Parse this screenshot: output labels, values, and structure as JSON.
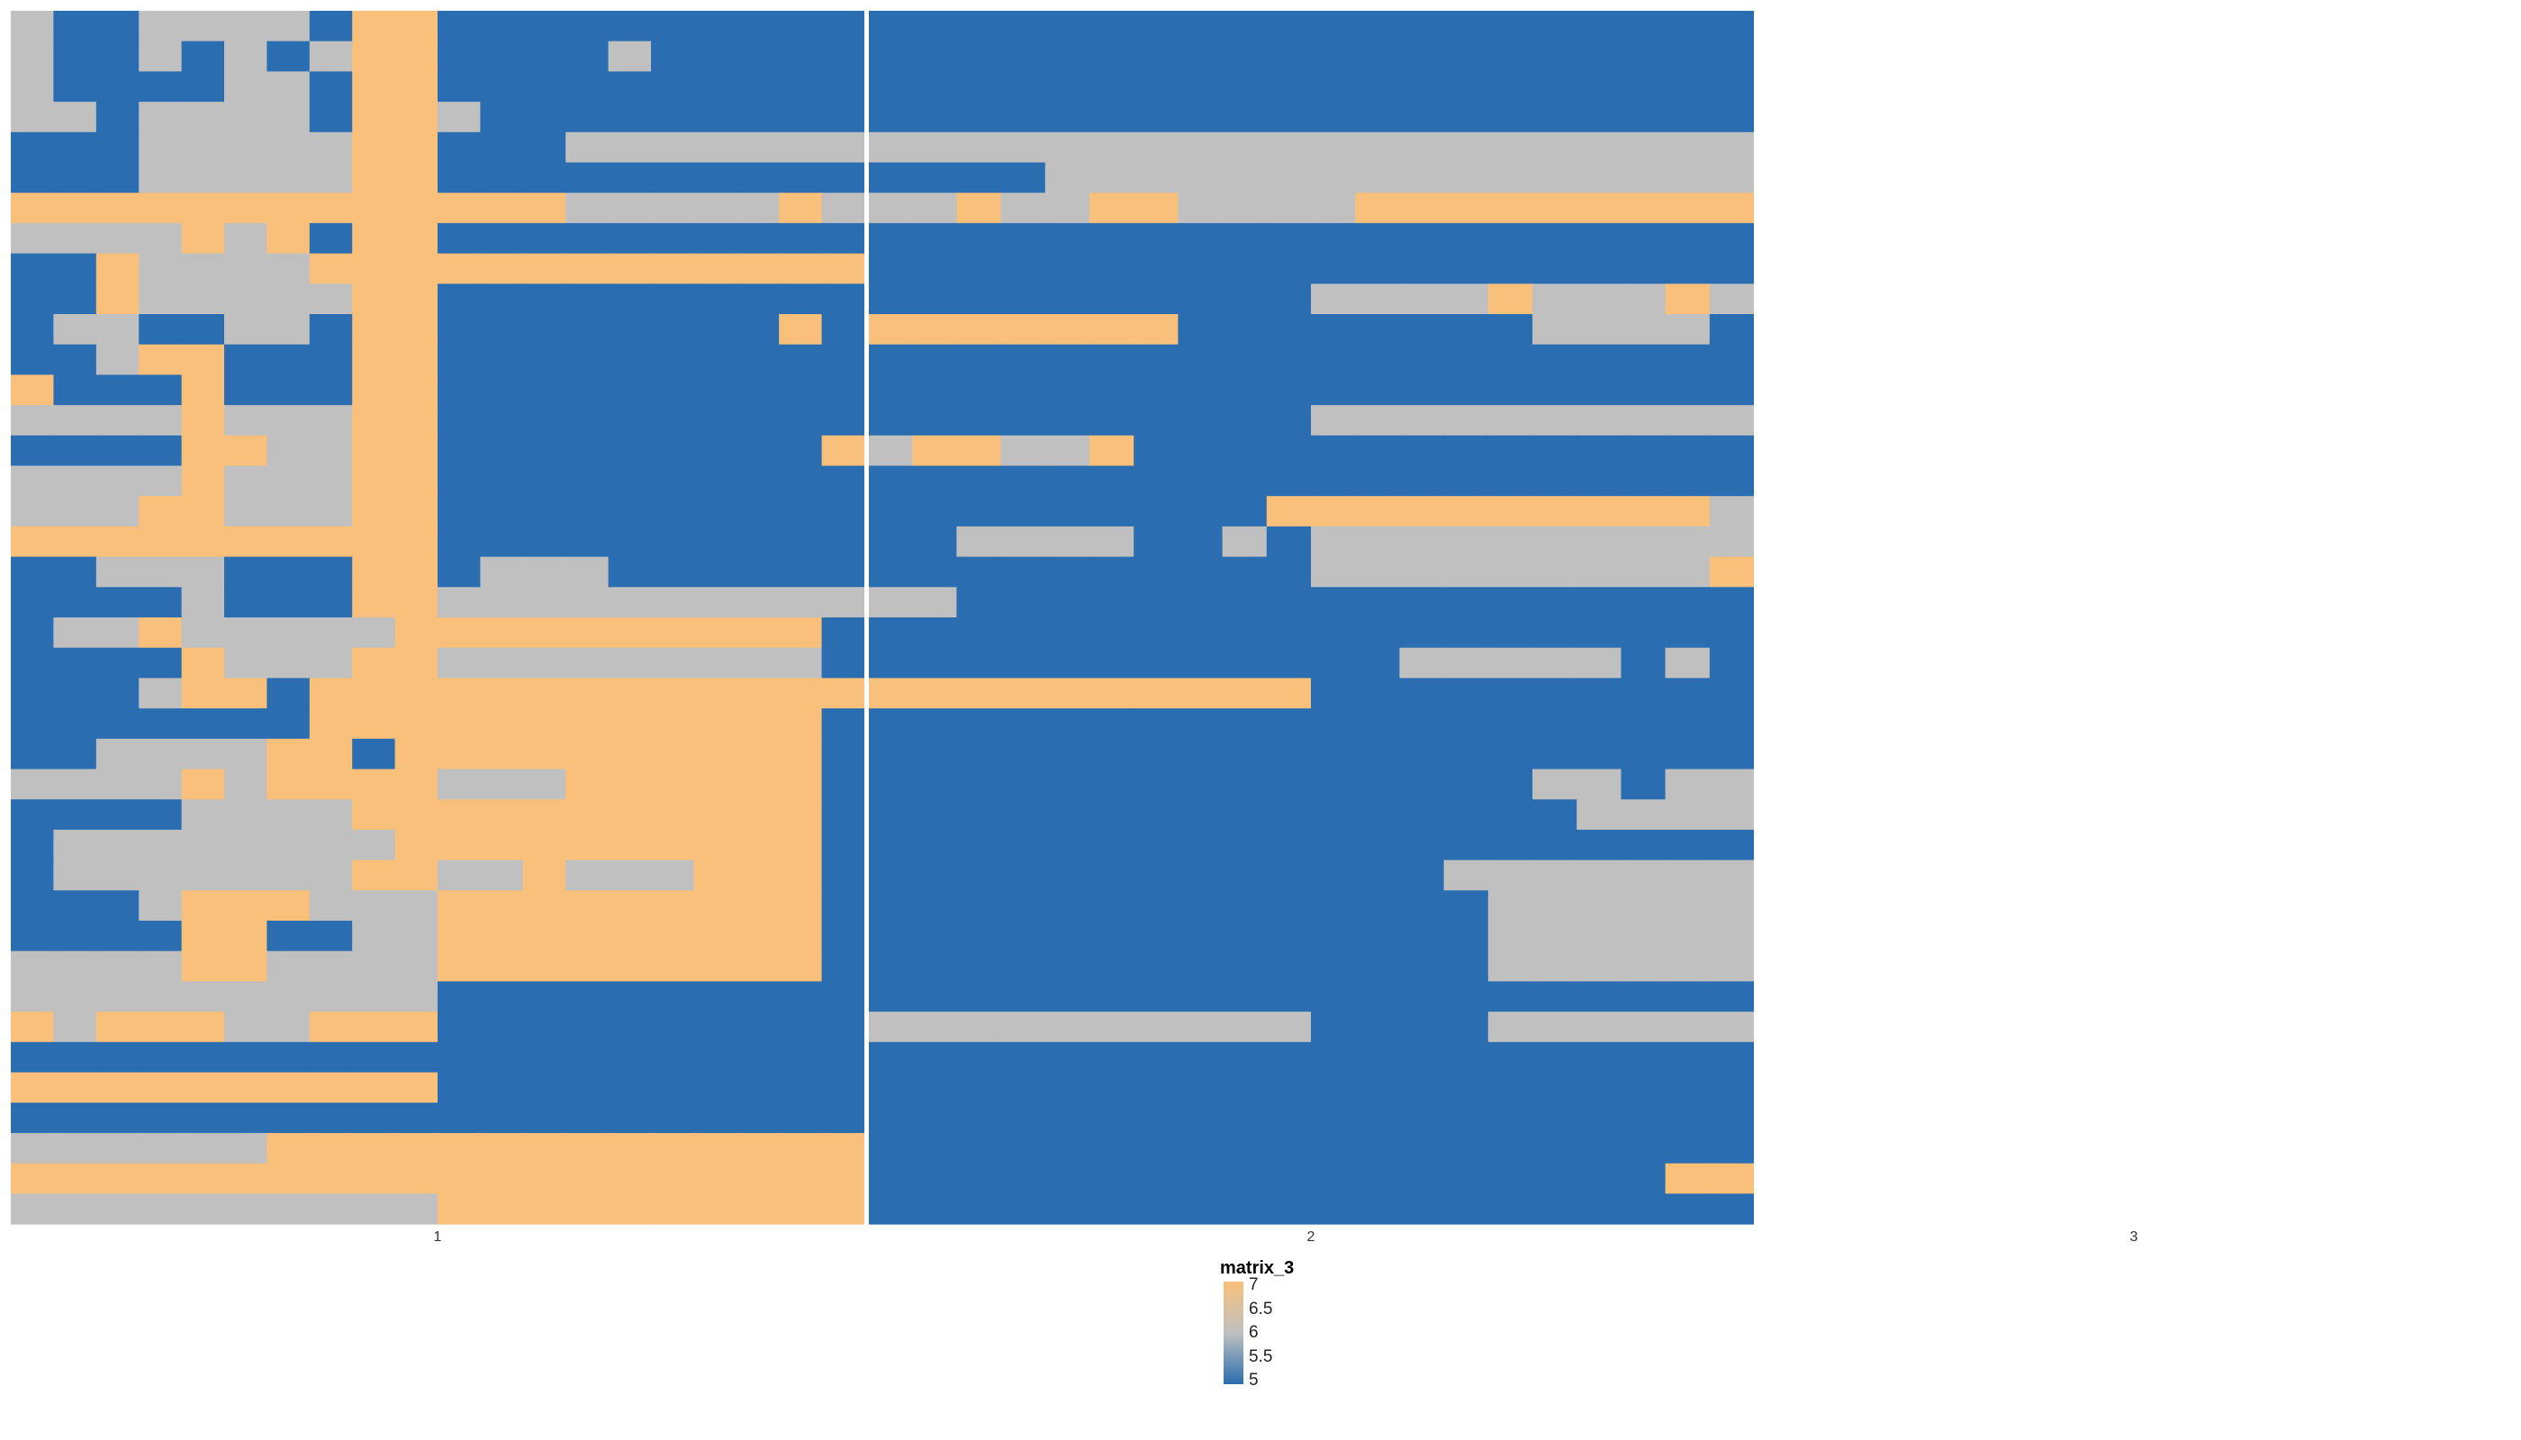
{
  "chart_data": {
    "type": "heatmap",
    "title": "",
    "xlabel": "",
    "ylabel": "",
    "x": [
      1,
      2,
      3
    ],
    "column_split_labels": [
      "1",
      "2",
      "3"
    ],
    "n_rows": 40,
    "colors": {
      "low": "#2a6db0",
      "mid": "#c0c0c0",
      "high": "#f8c07a"
    },
    "legend": {
      "title": "matrix_3",
      "range": [
        5,
        7
      ],
      "breaks": [
        "7",
        "6.5",
        "6",
        "5.5",
        "5"
      ],
      "position": "bottom-center"
    },
    "panel_rows": [
      "GBBGGGGBYYBBBBBBBBBBBBBBBBBBBBBBBBBBBBBB",
      "GBBGBGBGYYBBBBGBBBBBBBBBBBBBBBBBBBBBBBBB",
      "GBBBBGGBYYBBBBBBBBBBBBBBBBBBBBBBBBBBBBBB",
      "GGBGGGGBYYGBBBBBBBBBBBBBBBBBBBBBBBBBBBBB",
      "BBBGGGGGYYBBBGGGGGGGGGGGGGGGGGGGGGGGGGGG",
      "BBBGGGGGYYBBBBBBBBBBBBBBGGGGGGGGGGGGGGGG",
      "YYYYYYYYYYYYYGGGGGYGGGYGGYYGGGGYYYYYYYYY",
      "GGGGYGYBYYBBBBBBBBBBBBBBBBBBBBBBBBBBBBBB",
      "BBYGGGGYYYYYYYYYYYYYBBBBBBBBBBBBBBBBBBBB",
      "BBYGGGGGYYBBBBBBBBBBBBBBBBBBBBGGGGYGGGYG",
      "BGGBBGGBYYBBBBBBBBYBYYYYYYYBBBBBBBBGGGGB",
      "BBGYYBBBYYBBBBBBBBBBBBBBBBBBBBBBBBBBBBBB",
      "YBBBYBBBYYBBBBBBBBBBBBBBBBBBBBBBBBBBBBBB",
      "GGGGYGGGYYBBBBBBBBBBBBBBBBBBBBGGGGGGGGGG",
      "BBBBYYGGYYBBBBBBBBBYGYYGGYBBBBBBBBBBBBBB",
      "GGGGYGGGYYBBBBBBBBBBBBBBBBBBBBBBBBBBBBBB",
      "GGGYYGGGYYBBBBBBBBBBBBBBBBBBBYYYYYYYYYYG",
      "YYYYYYYYYYBBBBBBBBBBBBGGGGBBGBGGGGGGGGGG",
      "BBGGGBBBYYBGGGBBBBBBBBBBBBBBBBGGGGGGGGGY",
      "BBBBGBBBYYGGGGGGGGGGGGBBBBBBBBBBBBBBBBBB",
      "BGGYGGGGGYYYYYYYYYYBBBBBBBBBBBBBBBBBBBBB",
      "BBBBYGGGYYGGGGGGGGGBBBBBBBBBBBBBGGGGGBGB",
      "BBBGYYBYYYYYYYYYYYYYYYYYYYYYYYBBBBBBBBBB",
      "BBBBBBBYYYYYYYYYYYYBBBBBBBBBBBBBBBBBBBBB",
      "BBGGGGYYBYYYYYYYYYYBBBBBBBBBBBBBBBBBBBBB",
      "GGGGYGYYYYGGGYYYYYYBBBBBBBBBBBBBBBBGGBGG",
      "BBBBGGGGYYYYYYYYYYYBBBBBBBBBBBBBBBBBGGGG",
      "BGGGGGGGGYYYYYYYYYYBBBBBBBBBBBBBBBBBBBBB",
      "BGGGGGGGYYGGYGGGYYYBBBBBBBBBBBBBBGGGGGGG",
      "BBBGYYYGGGYYYYYYYYYBBBBBBBBBBBBBBBGGGGGG",
      "BBBBYYBBGGYYYYYYYYYBBBBBBBBBBBBBBBGGGGGG",
      "GGGGYYGGGGYYYYYYYYYBBBBBBBBBBBBBBBGGGGGG",
      "GGGGGGGGGGBBBBBBBBBBBBBBBBBBBBBBBBBBBBBB",
      "YGYYYGGYYYBBBBBBBBBBGGGGGGGGGGBBBBGGGGGG",
      "BBBBBBBBBBBBBBBBBBBBBBBBBBBBBBBBBBBBBBBB",
      "YYYYYYYYYYBBBBBBBBBBBBBBBBBBBBBBBBBBBBBB",
      "BBBBBBBBBBBBBBBBBBBBBBBBBBBBBBBBBBBBBBBB",
      "GGGGGGYYYYYYYYYYYYYYBBBBBBBBBBBBBBBBBBBB",
      "YYYYYYYYYYYYYYYYYYYYBBBBBBBBBBBBBBBBBBYY",
      "GGGGGGGGGGYYYYYYYYYYBBBBBBBBBBBBBBBBBBBB"
    ]
  }
}
